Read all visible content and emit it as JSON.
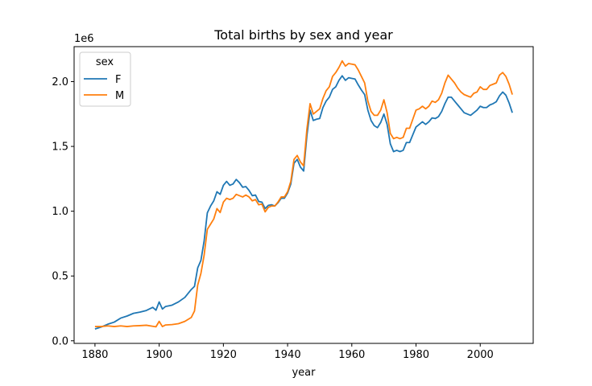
{
  "chart_data": {
    "type": "line",
    "title": "Total births by sex and year",
    "xlabel": "year",
    "ylabel": "",
    "y_scale_label": "1e6",
    "xlim": [
      1873.5,
      2016.5
    ],
    "ylim": [
      -0.02,
      2.27
    ],
    "xticks": [
      1880,
      1900,
      1920,
      1940,
      1960,
      1980,
      2000
    ],
    "xtick_labels": [
      "1880",
      "1900",
      "1920",
      "1940",
      "1960",
      "1980",
      "2000"
    ],
    "yticks": [
      0.0,
      0.5,
      1.0,
      1.5,
      2.0
    ],
    "ytick_labels": [
      "0.0",
      "0.5",
      "1.0",
      "1.5",
      "2.0"
    ],
    "grid": false,
    "legend": {
      "title": "sex",
      "position": "upper-left"
    },
    "series": [
      {
        "name": "F",
        "color": "#1f77b4",
        "points": [
          [
            1880,
            0.091
          ],
          [
            1882,
            0.107
          ],
          [
            1884,
            0.128
          ],
          [
            1886,
            0.144
          ],
          [
            1888,
            0.175
          ],
          [
            1890,
            0.191
          ],
          [
            1892,
            0.212
          ],
          [
            1894,
            0.221
          ],
          [
            1896,
            0.234
          ],
          [
            1898,
            0.258
          ],
          [
            1899,
            0.236
          ],
          [
            1900,
            0.3
          ],
          [
            1901,
            0.245
          ],
          [
            1902,
            0.265
          ],
          [
            1904,
            0.275
          ],
          [
            1906,
            0.3
          ],
          [
            1908,
            0.335
          ],
          [
            1910,
            0.396
          ],
          [
            1911,
            0.42
          ],
          [
            1912,
            0.563
          ],
          [
            1913,
            0.62
          ],
          [
            1914,
            0.77
          ],
          [
            1915,
            0.988
          ],
          [
            1916,
            1.04
          ],
          [
            1917,
            1.08
          ],
          [
            1918,
            1.15
          ],
          [
            1919,
            1.13
          ],
          [
            1920,
            1.2
          ],
          [
            1921,
            1.23
          ],
          [
            1922,
            1.2
          ],
          [
            1923,
            1.21
          ],
          [
            1924,
            1.245
          ],
          [
            1925,
            1.22
          ],
          [
            1926,
            1.185
          ],
          [
            1927,
            1.19
          ],
          [
            1928,
            1.16
          ],
          [
            1929,
            1.12
          ],
          [
            1930,
            1.125
          ],
          [
            1931,
            1.075
          ],
          [
            1932,
            1.07
          ],
          [
            1933,
            1.02
          ],
          [
            1934,
            1.045
          ],
          [
            1935,
            1.05
          ],
          [
            1936,
            1.04
          ],
          [
            1937,
            1.065
          ],
          [
            1938,
            1.1
          ],
          [
            1939,
            1.1
          ],
          [
            1940,
            1.14
          ],
          [
            1941,
            1.21
          ],
          [
            1942,
            1.37
          ],
          [
            1943,
            1.4
          ],
          [
            1944,
            1.34
          ],
          [
            1945,
            1.31
          ],
          [
            1946,
            1.58
          ],
          [
            1947,
            1.78
          ],
          [
            1948,
            1.7
          ],
          [
            1949,
            1.71
          ],
          [
            1950,
            1.715
          ],
          [
            1951,
            1.8
          ],
          [
            1952,
            1.85
          ],
          [
            1953,
            1.88
          ],
          [
            1954,
            1.94
          ],
          [
            1955,
            1.96
          ],
          [
            1956,
            2.01
          ],
          [
            1957,
            2.045
          ],
          [
            1958,
            2.01
          ],
          [
            1959,
            2.03
          ],
          [
            1960,
            2.025
          ],
          [
            1961,
            2.02
          ],
          [
            1962,
            1.975
          ],
          [
            1963,
            1.935
          ],
          [
            1964,
            1.9
          ],
          [
            1965,
            1.78
          ],
          [
            1966,
            1.7
          ],
          [
            1967,
            1.66
          ],
          [
            1968,
            1.645
          ],
          [
            1969,
            1.685
          ],
          [
            1970,
            1.75
          ],
          [
            1971,
            1.67
          ],
          [
            1972,
            1.52
          ],
          [
            1973,
            1.46
          ],
          [
            1974,
            1.47
          ],
          [
            1975,
            1.46
          ],
          [
            1976,
            1.47
          ],
          [
            1977,
            1.53
          ],
          [
            1978,
            1.53
          ],
          [
            1979,
            1.59
          ],
          [
            1980,
            1.65
          ],
          [
            1981,
            1.67
          ],
          [
            1982,
            1.69
          ],
          [
            1983,
            1.67
          ],
          [
            1984,
            1.69
          ],
          [
            1985,
            1.72
          ],
          [
            1986,
            1.715
          ],
          [
            1987,
            1.73
          ],
          [
            1988,
            1.77
          ],
          [
            1989,
            1.83
          ],
          [
            1990,
            1.88
          ],
          [
            1991,
            1.88
          ],
          [
            1992,
            1.85
          ],
          [
            1993,
            1.82
          ],
          [
            1994,
            1.79
          ],
          [
            1995,
            1.76
          ],
          [
            1996,
            1.75
          ],
          [
            1997,
            1.74
          ],
          [
            1998,
            1.76
          ],
          [
            1999,
            1.78
          ],
          [
            2000,
            1.81
          ],
          [
            2001,
            1.8
          ],
          [
            2002,
            1.8
          ],
          [
            2003,
            1.82
          ],
          [
            2004,
            1.83
          ],
          [
            2005,
            1.845
          ],
          [
            2006,
            1.89
          ],
          [
            2007,
            1.92
          ],
          [
            2008,
            1.895
          ],
          [
            2009,
            1.835
          ],
          [
            2010,
            1.76
          ]
        ]
      },
      {
        "name": "M",
        "color": "#ff7f0e",
        "points": [
          [
            1880,
            0.11
          ],
          [
            1882,
            0.11
          ],
          [
            1884,
            0.115
          ],
          [
            1886,
            0.11
          ],
          [
            1888,
            0.115
          ],
          [
            1890,
            0.11
          ],
          [
            1892,
            0.115
          ],
          [
            1894,
            0.117
          ],
          [
            1896,
            0.12
          ],
          [
            1898,
            0.112
          ],
          [
            1899,
            0.108
          ],
          [
            1900,
            0.15
          ],
          [
            1901,
            0.11
          ],
          [
            1902,
            0.122
          ],
          [
            1904,
            0.125
          ],
          [
            1906,
            0.132
          ],
          [
            1908,
            0.15
          ],
          [
            1910,
            0.18
          ],
          [
            1911,
            0.23
          ],
          [
            1912,
            0.43
          ],
          [
            1913,
            0.52
          ],
          [
            1914,
            0.66
          ],
          [
            1915,
            0.86
          ],
          [
            1916,
            0.9
          ],
          [
            1917,
            0.94
          ],
          [
            1918,
            1.02
          ],
          [
            1919,
            0.99
          ],
          [
            1920,
            1.07
          ],
          [
            1921,
            1.1
          ],
          [
            1922,
            1.09
          ],
          [
            1923,
            1.1
          ],
          [
            1924,
            1.13
          ],
          [
            1925,
            1.12
          ],
          [
            1926,
            1.11
          ],
          [
            1927,
            1.125
          ],
          [
            1928,
            1.11
          ],
          [
            1929,
            1.08
          ],
          [
            1930,
            1.09
          ],
          [
            1931,
            1.05
          ],
          [
            1932,
            1.055
          ],
          [
            1933,
            0.995
          ],
          [
            1934,
            1.03
          ],
          [
            1935,
            1.04
          ],
          [
            1936,
            1.04
          ],
          [
            1937,
            1.07
          ],
          [
            1938,
            1.11
          ],
          [
            1939,
            1.11
          ],
          [
            1940,
            1.15
          ],
          [
            1941,
            1.23
          ],
          [
            1942,
            1.4
          ],
          [
            1943,
            1.43
          ],
          [
            1944,
            1.38
          ],
          [
            1945,
            1.35
          ],
          [
            1946,
            1.63
          ],
          [
            1947,
            1.83
          ],
          [
            1948,
            1.75
          ],
          [
            1949,
            1.77
          ],
          [
            1950,
            1.79
          ],
          [
            1951,
            1.87
          ],
          [
            1952,
            1.93
          ],
          [
            1953,
            1.96
          ],
          [
            1954,
            2.04
          ],
          [
            1955,
            2.07
          ],
          [
            1956,
            2.11
          ],
          [
            1957,
            2.16
          ],
          [
            1958,
            2.12
          ],
          [
            1959,
            2.14
          ],
          [
            1960,
            2.135
          ],
          [
            1961,
            2.13
          ],
          [
            1962,
            2.09
          ],
          [
            1963,
            2.04
          ],
          [
            1964,
            1.99
          ],
          [
            1965,
            1.85
          ],
          [
            1966,
            1.77
          ],
          [
            1967,
            1.74
          ],
          [
            1968,
            1.74
          ],
          [
            1969,
            1.78
          ],
          [
            1970,
            1.86
          ],
          [
            1971,
            1.76
          ],
          [
            1972,
            1.6
          ],
          [
            1973,
            1.56
          ],
          [
            1974,
            1.57
          ],
          [
            1975,
            1.56
          ],
          [
            1976,
            1.57
          ],
          [
            1977,
            1.64
          ],
          [
            1978,
            1.64
          ],
          [
            1979,
            1.71
          ],
          [
            1980,
            1.78
          ],
          [
            1981,
            1.79
          ],
          [
            1982,
            1.81
          ],
          [
            1983,
            1.79
          ],
          [
            1984,
            1.81
          ],
          [
            1985,
            1.85
          ],
          [
            1986,
            1.84
          ],
          [
            1987,
            1.86
          ],
          [
            1988,
            1.91
          ],
          [
            1989,
            1.99
          ],
          [
            1990,
            2.05
          ],
          [
            1991,
            2.02
          ],
          [
            1992,
            1.99
          ],
          [
            1993,
            1.95
          ],
          [
            1994,
            1.92
          ],
          [
            1995,
            1.9
          ],
          [
            1996,
            1.89
          ],
          [
            1997,
            1.88
          ],
          [
            1998,
            1.91
          ],
          [
            1999,
            1.92
          ],
          [
            2000,
            1.96
          ],
          [
            2001,
            1.94
          ],
          [
            2002,
            1.94
          ],
          [
            2003,
            1.97
          ],
          [
            2004,
            1.98
          ],
          [
            2005,
            1.99
          ],
          [
            2006,
            2.05
          ],
          [
            2007,
            2.07
          ],
          [
            2008,
            2.04
          ],
          [
            2009,
            1.98
          ],
          [
            2010,
            1.9
          ]
        ]
      }
    ]
  }
}
